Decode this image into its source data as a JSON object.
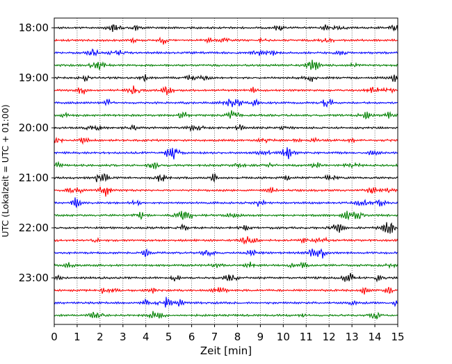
{
  "chart_data": {
    "type": "line",
    "xlabel": "Zeit  [min]",
    "ylabel": "UTC (Lokalzeit = UTC + 01:00)",
    "xlim": [
      0,
      15
    ],
    "x_ticks": [
      "0",
      "1",
      "2",
      "3",
      "4",
      "5",
      "6",
      "7",
      "8",
      "9",
      "10",
      "11",
      "12",
      "13",
      "14",
      "15"
    ],
    "y_tick_labels": [
      "18:00",
      "19:00",
      "20:00",
      "21:00",
      "22:00",
      "23:00"
    ],
    "trace_count": 24,
    "traces_per_hour": 4,
    "trace_colors": [
      "#000000",
      "#ff0000",
      "#0000ff",
      "#008000"
    ],
    "vertical_grid": true,
    "grid_style": "dotted"
  }
}
